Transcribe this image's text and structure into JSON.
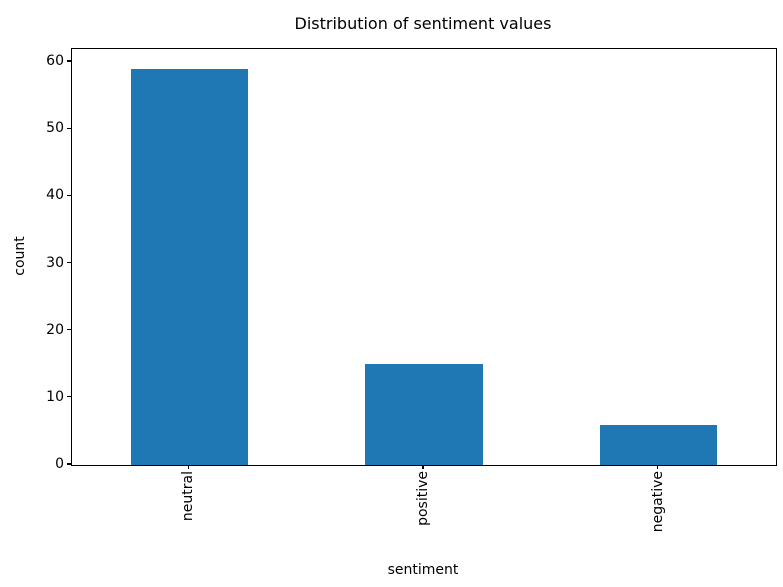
{
  "chart_data": {
    "type": "bar",
    "title": "Distribution of sentiment values",
    "xlabel": "sentiment",
    "ylabel": "count",
    "categories": [
      "neutral",
      "positive",
      "negative"
    ],
    "values": [
      59,
      15,
      6
    ],
    "yticks": [
      0,
      10,
      20,
      30,
      40,
      50,
      60
    ],
    "ylim": [
      0,
      61.95
    ],
    "bar_color": "#1f77b4",
    "bar_width_fraction": 0.5,
    "x_tick_label_rotation_deg": 90,
    "grid": false,
    "legend": "none",
    "background_color": "#ffffff",
    "axis_color": "#000000"
  }
}
